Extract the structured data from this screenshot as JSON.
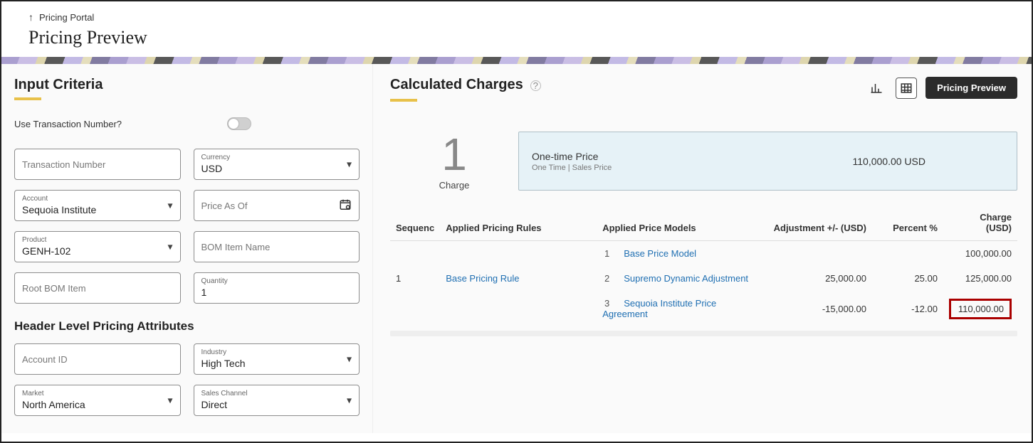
{
  "breadcrumb": {
    "parent": "Pricing Portal"
  },
  "page": {
    "title": "Pricing Preview"
  },
  "leftPane": {
    "sectionTitle": "Input Criteria",
    "useTxnLabel": "Use Transaction Number?",
    "useTxnOn": false,
    "fields": {
      "transactionNumber": {
        "placeholder": "Transaction Number",
        "value": ""
      },
      "currency": {
        "label": "Currency",
        "value": "USD"
      },
      "account": {
        "label": "Account",
        "value": "Sequoia Institute"
      },
      "priceAsOf": {
        "placeholder": "Price As Of",
        "value": ""
      },
      "product": {
        "label": "Product",
        "value": "GENH-102"
      },
      "bomItemName": {
        "placeholder": "BOM Item Name",
        "value": ""
      },
      "rootBomItem": {
        "placeholder": "Root BOM Item",
        "value": ""
      },
      "quantity": {
        "label": "Quantity",
        "value": "1"
      }
    },
    "subsectionTitle": "Header Level Pricing Attributes",
    "attrFields": {
      "accountId": {
        "placeholder": "Account ID",
        "value": ""
      },
      "industry": {
        "label": "Industry",
        "value": "High Tech"
      },
      "market": {
        "label": "Market",
        "value": "North America"
      },
      "salesChannel": {
        "label": "Sales Channel",
        "value": "Direct"
      }
    }
  },
  "rightPane": {
    "sectionTitle": "Calculated Charges",
    "actions": {
      "previewBtn": "Pricing Preview"
    },
    "summary": {
      "count": "1",
      "countLabel": "Charge",
      "price": {
        "title": "One-time Price",
        "sub": "One Time | Sales Price",
        "amount": "110,000.00 USD"
      }
    },
    "table": {
      "headers": {
        "seq": "Sequenc",
        "rules": "Applied Pricing Rules",
        "models": "Applied Price Models",
        "adj": "Adjustment +/- (USD)",
        "pct": "Percent %",
        "charge1": "Charge",
        "charge2": "(USD)"
      },
      "rows": [
        {
          "seq": "1",
          "rule": "Base Pricing Rule",
          "models": [
            {
              "idx": "1",
              "name": "Base Price Model",
              "adj": "",
              "pct": "",
              "charge": "100,000.00",
              "highlight": false
            },
            {
              "idx": "2",
              "name": "Supremo Dynamic Adjustment",
              "adj": "25,000.00",
              "pct": "25.00",
              "charge": "125,000.00",
              "highlight": false
            },
            {
              "idx": "3",
              "name": "Sequoia Institute Price Agreement",
              "adj": "-15,000.00",
              "pct": "-12.00",
              "charge": "110,000.00",
              "highlight": true
            }
          ]
        }
      ]
    }
  },
  "colors": {
    "accentUnderline": "#e8c14a",
    "link": "#1f6fb2",
    "priceCardBg": "#e6f2f7",
    "priceCardBorder": "#aebfc7",
    "highlightBorder": "#a00000",
    "primaryBtnBg": "#2b2b2b"
  }
}
